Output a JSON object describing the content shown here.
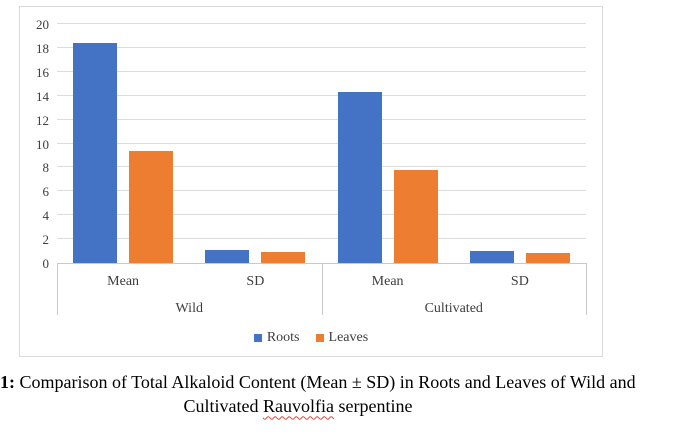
{
  "chart_data": {
    "type": "bar",
    "title": "",
    "group_categories": [
      "Wild",
      "Cultivated"
    ],
    "sub_categories": [
      "Mean",
      "SD"
    ],
    "categories": [
      "Wild Mean",
      "Wild SD",
      "Cultivated Mean",
      "Cultivated SD"
    ],
    "series": [
      {
        "name": "Roots",
        "color": "#4472C4",
        "values": [
          18.4,
          1.1,
          14.3,
          1.0
        ]
      },
      {
        "name": "Leaves",
        "color": "#ED7D31",
        "values": [
          9.4,
          0.9,
          7.8,
          0.8
        ]
      }
    ],
    "ylim": [
      0,
      20
    ],
    "ytick_step": 2,
    "yticks": [
      0,
      2,
      4,
      6,
      8,
      10,
      12,
      14,
      16,
      18,
      20
    ],
    "grid": true,
    "legend_position": "bottom"
  },
  "caption": {
    "prefix": "1:",
    "line1": " Comparison of Total Alkaloid Content (Mean ± SD) in Roots and Leaves of Wild and",
    "line2_start": "Cultivated ",
    "line2_misspelled": "Rauvolfia",
    "line2_end": " serpentine"
  },
  "colors": {
    "roots": "#4472C4",
    "leaves": "#ED7D31",
    "gridline": "#DCDCDC",
    "frame_border": "#D9D9D9",
    "axis_text": "#3D3D3D",
    "squiggle": "#E0443A"
  }
}
